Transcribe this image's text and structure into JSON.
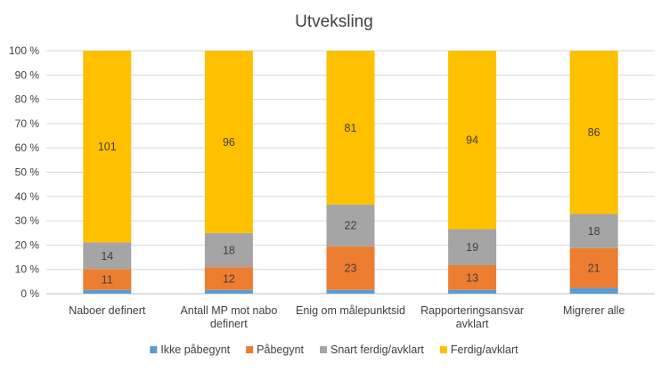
{
  "chart_data": {
    "type": "bar",
    "stacked": "percent",
    "title": "Utveksling",
    "categories": [
      [
        "Naboer definert"
      ],
      [
        "Antall MP mot nabo",
        "definert"
      ],
      [
        "Enig om målepunktsid"
      ],
      [
        "Rapporteringsansvar",
        "avklart"
      ],
      [
        "Migrerer alle"
      ]
    ],
    "series": [
      {
        "name": "Ikke påbegynt",
        "color": "#5b9bd5",
        "values": [
          2,
          2,
          2,
          2,
          3
        ]
      },
      {
        "name": "Påbegynt",
        "color": "#ed7d31",
        "values": [
          11,
          12,
          23,
          13,
          21
        ]
      },
      {
        "name": "Snart ferdig/avklart",
        "color": "#a5a5a5",
        "values": [
          14,
          18,
          22,
          19,
          18
        ]
      },
      {
        "name": "Ferdig/avklart",
        "color": "#ffc000",
        "values": [
          101,
          96,
          81,
          94,
          86
        ]
      }
    ],
    "data_labels": [
      [
        "",
        "",
        "",
        "",
        ""
      ],
      [
        "11",
        "12",
        "23",
        "13",
        "21"
      ],
      [
        "14",
        "18",
        "22",
        "19",
        "18"
      ],
      [
        "101",
        "96",
        "81",
        "94",
        "86"
      ]
    ],
    "y_ticks": [
      "0 %",
      "10 %",
      "20 %",
      "30 %",
      "40 %",
      "50 %",
      "60 %",
      "70 %",
      "80 %",
      "90 %",
      "100 %"
    ],
    "ylim": [
      0,
      100
    ],
    "grid": true,
    "legend_position": "bottom"
  }
}
